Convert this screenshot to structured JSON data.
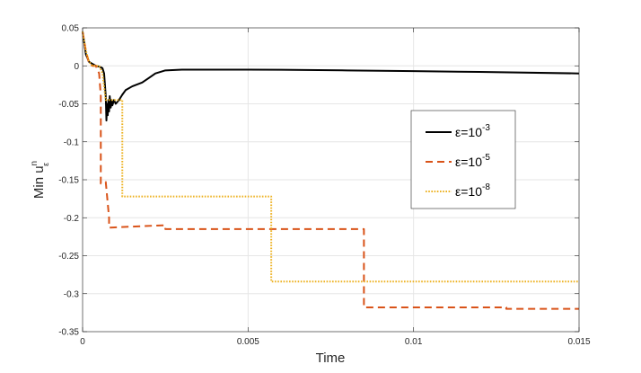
{
  "chart_data": {
    "type": "line",
    "xlabel": "Time",
    "ylabel": {
      "base": "Min u",
      "sup": "n",
      "sub": "ε"
    },
    "xlim": [
      0,
      0.015
    ],
    "ylim": [
      -0.35,
      0.05
    ],
    "xticks": [
      0,
      0.005,
      0.01,
      0.015
    ],
    "xtick_labels": [
      "0",
      "0.005",
      "0.01",
      "0.015"
    ],
    "yticks": [
      0.05,
      0,
      -0.05,
      -0.1,
      -0.15,
      -0.2,
      -0.25,
      -0.3,
      -0.35
    ],
    "ytick_labels": [
      "0.05",
      "0",
      "-0.05",
      "-0.1",
      "-0.15",
      "-0.2",
      "-0.25",
      "-0.3",
      "-0.35"
    ],
    "grid": true,
    "legend_position": "right",
    "series": [
      {
        "key": "eps3",
        "label": {
          "base": "ε=10",
          "sup": "-3"
        },
        "color": "#000000",
        "style": "solid",
        "x": [
          0,
          5e-05,
          0.0001,
          0.0002,
          0.0004,
          0.0005,
          0.0006,
          0.00065,
          0.0007,
          0.00072,
          0.00074,
          0.00076,
          0.00078,
          0.0008,
          0.00082,
          0.00085,
          0.00088,
          0.0009,
          0.00095,
          0.001,
          0.0011,
          0.0012,
          0.0013,
          0.0015,
          0.0018,
          0.002,
          0.0022,
          0.0025,
          0.003,
          0.004,
          0.005,
          0.006,
          0.008,
          0.01,
          0.012,
          0.015
        ],
        "y": [
          0.045,
          0.03,
          0.015,
          0.005,
          0.0,
          -0.001,
          -0.003,
          -0.01,
          -0.04,
          -0.072,
          -0.05,
          -0.065,
          -0.045,
          -0.06,
          -0.04,
          -0.055,
          -0.045,
          -0.052,
          -0.045,
          -0.05,
          -0.045,
          -0.038,
          -0.032,
          -0.027,
          -0.022,
          -0.016,
          -0.01,
          -0.006,
          -0.005,
          -0.005,
          -0.005,
          -0.0052,
          -0.006,
          -0.007,
          -0.008,
          -0.01
        ]
      },
      {
        "key": "eps5",
        "label": {
          "base": "ε=10",
          "sup": "-5"
        },
        "color": "#d95319",
        "style": "dashed",
        "x": [
          0,
          0.0001,
          0.0002,
          0.0003,
          0.0004,
          0.0005,
          0.00055,
          0.00055,
          0.0007,
          0.0007,
          0.0008,
          0.0008,
          0.0024,
          0.0025,
          0.0025,
          0.0084,
          0.0085,
          0.0085,
          0.012,
          0.0128,
          0.0128,
          0.015
        ],
        "y": [
          0.045,
          0.02,
          0.002,
          0.0,
          0.0,
          -0.01,
          -0.04,
          -0.155,
          -0.153,
          -0.153,
          -0.2,
          -0.213,
          -0.21,
          -0.21,
          -0.215,
          -0.215,
          -0.215,
          -0.318,
          -0.318,
          -0.318,
          -0.32,
          -0.32
        ]
      },
      {
        "key": "eps8",
        "label": {
          "base": "ε=10",
          "sup": "-8"
        },
        "color": "#edb120",
        "style": "dotted",
        "x": [
          0,
          0.0001,
          0.0002,
          0.0003,
          0.0005,
          0.0006,
          0.0007,
          0.0011,
          0.0012,
          0.0012,
          0.0056,
          0.0057,
          0.0057,
          0.015
        ],
        "y": [
          0.045,
          0.02,
          0.005,
          0.0,
          0.0,
          -0.01,
          -0.045,
          -0.045,
          -0.045,
          -0.172,
          -0.172,
          -0.172,
          -0.284,
          -0.284
        ]
      }
    ]
  }
}
